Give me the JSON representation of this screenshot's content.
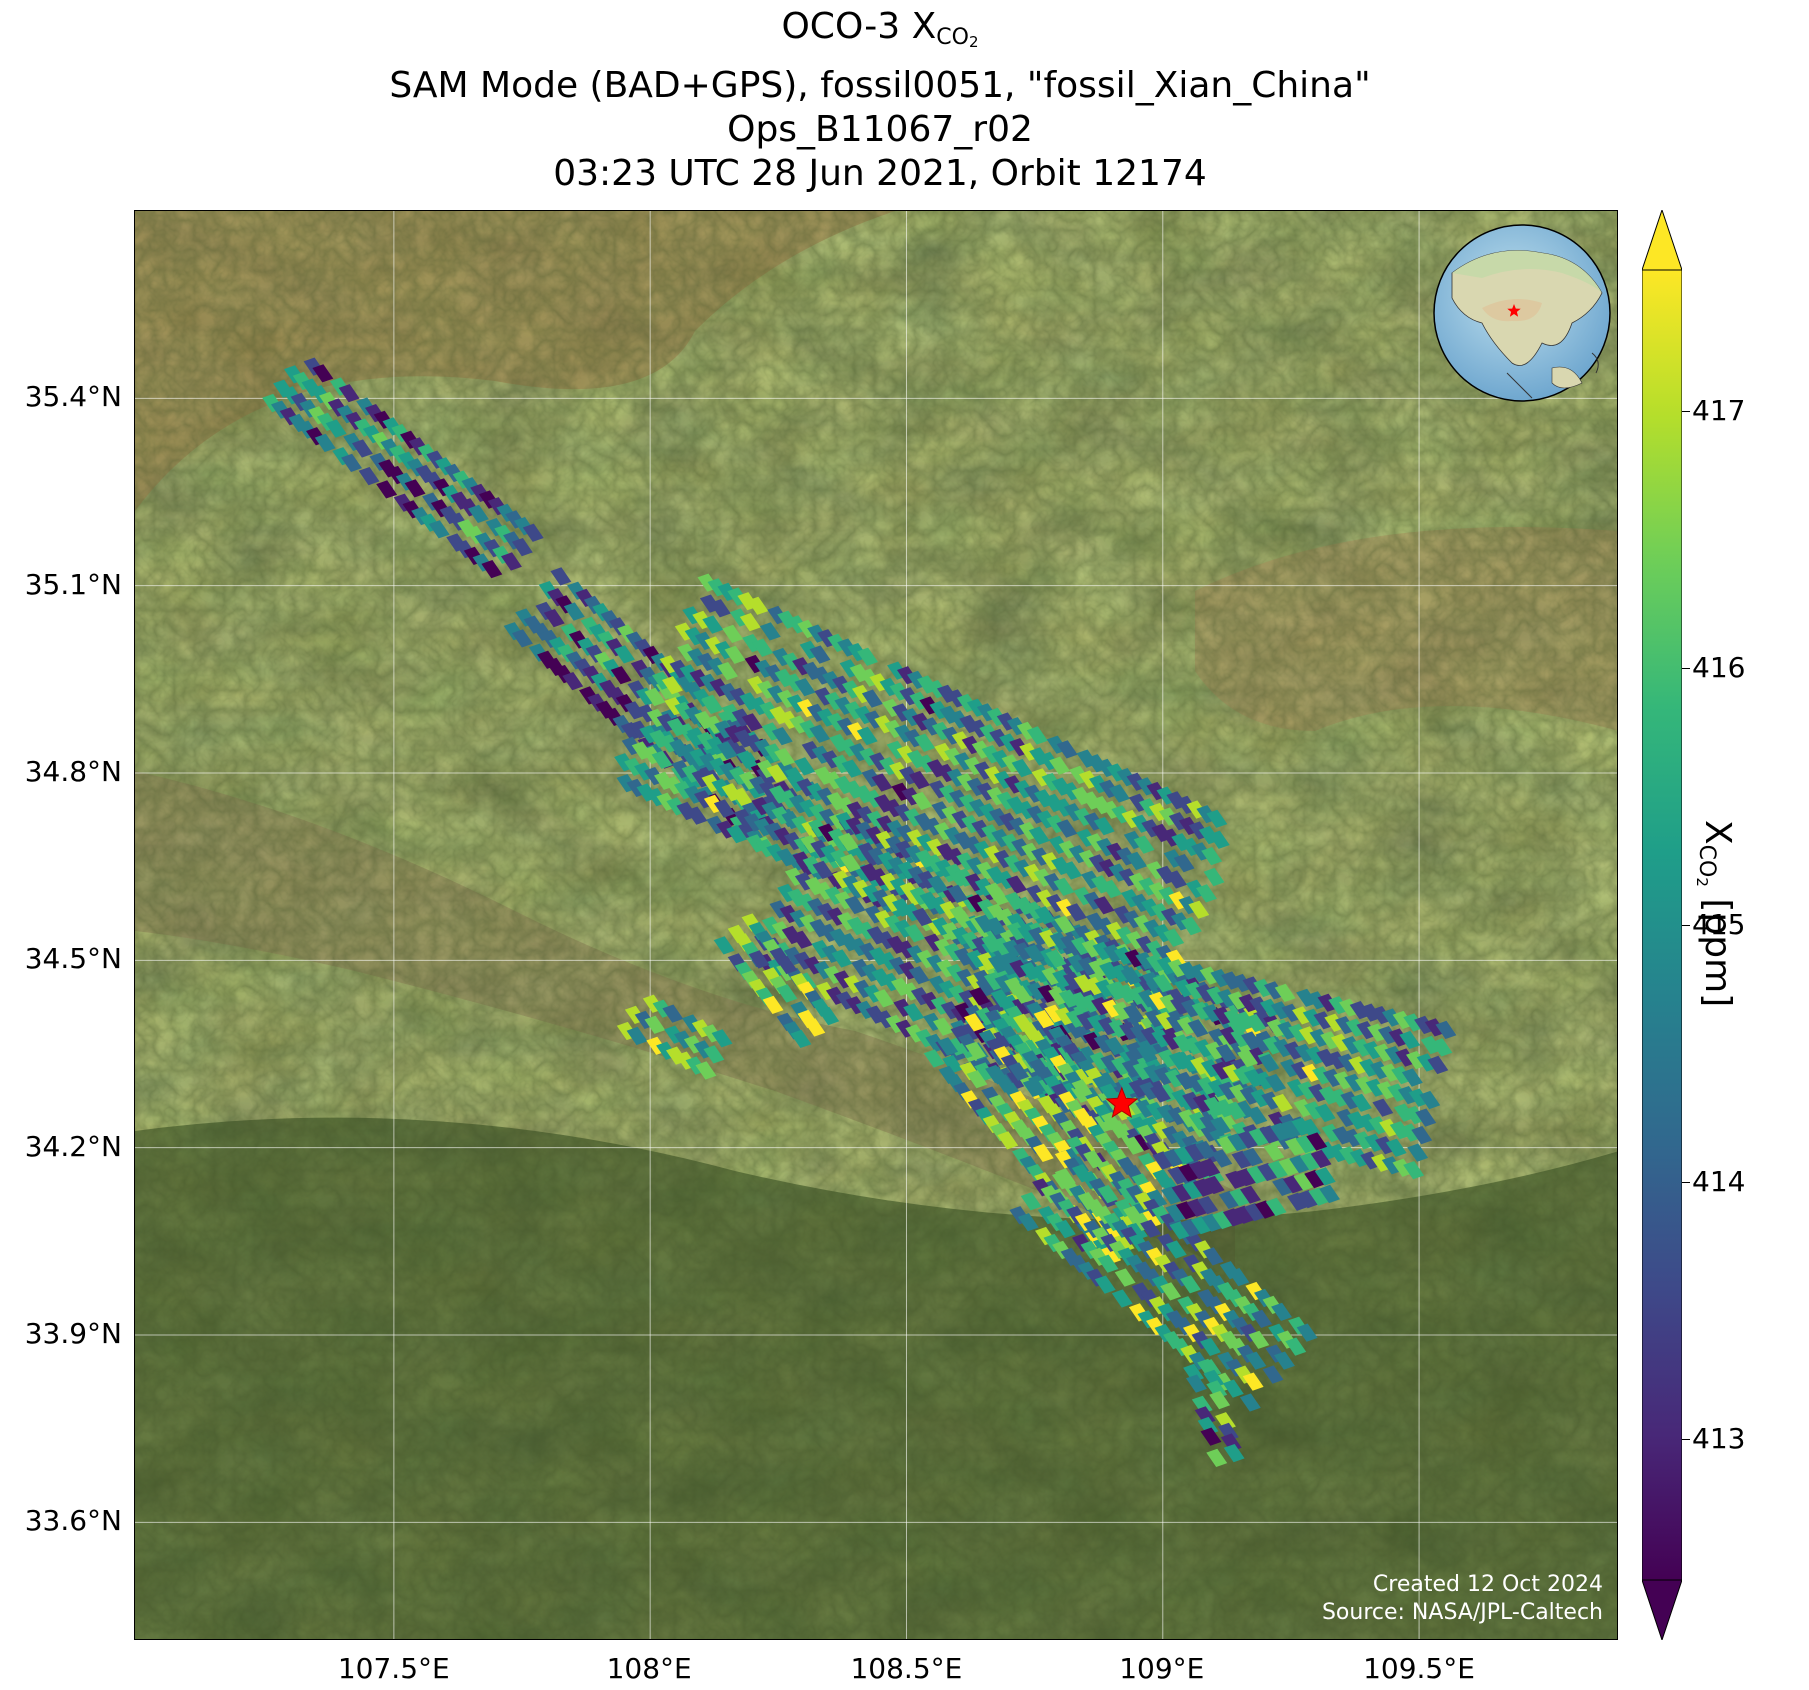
{
  "title": {
    "line1_prefix": "OCO-3 X",
    "line1_sub": "CO",
    "line1_subsub": "2",
    "line2": "SAM Mode (BAD+GPS), fossil0051, \"fossil_Xian_China\"",
    "line3": "Ops_B11067_r02",
    "line4": "03:23 UTC 28 Jun 2021, Orbit 12174"
  },
  "map": {
    "lon_ticks": [
      "107.5°E",
      "108°E",
      "108.5°E",
      "109°E",
      "109.5°E"
    ],
    "lon_values": [
      107.5,
      108.0,
      108.5,
      109.0,
      109.5
    ],
    "lat_ticks": [
      "35.4°N",
      "35.1°N",
      "34.8°N",
      "34.5°N",
      "34.2°N",
      "33.9°N",
      "33.6°N"
    ],
    "lat_values": [
      35.4,
      35.1,
      34.8,
      34.5,
      34.2,
      33.9,
      33.6
    ],
    "lon_range": [
      106.995,
      109.89
    ],
    "lat_range": [
      33.41,
      35.7
    ],
    "target_location": {
      "lon": 108.92,
      "lat": 34.27,
      "marker": "red-star"
    },
    "inset_globe": {
      "marker": "red-star",
      "region": "Asia"
    },
    "credit_line1": "Created 12 Oct 2024",
    "credit_line2": "Source: NASA/JPL-Caltech"
  },
  "colorbar": {
    "ticks": [
      "417",
      "416",
      "415",
      "414",
      "413"
    ],
    "tick_values": [
      417,
      416,
      415,
      414,
      413
    ],
    "range": [
      412.45,
      417.55
    ],
    "colormap": "viridis",
    "extend": "both",
    "label_prefix": "X",
    "label_sub": "CO",
    "label_subsub": "2",
    "label_suffix": " [ppm]"
  },
  "colors": {
    "viridis": [
      "#440154",
      "#482878",
      "#3e4989",
      "#31688e",
      "#26828e",
      "#1f9e89",
      "#35b779",
      "#6ece58",
      "#b5de2b",
      "#fde725"
    ],
    "star": "#ff0000",
    "grid": "#ffffff"
  }
}
